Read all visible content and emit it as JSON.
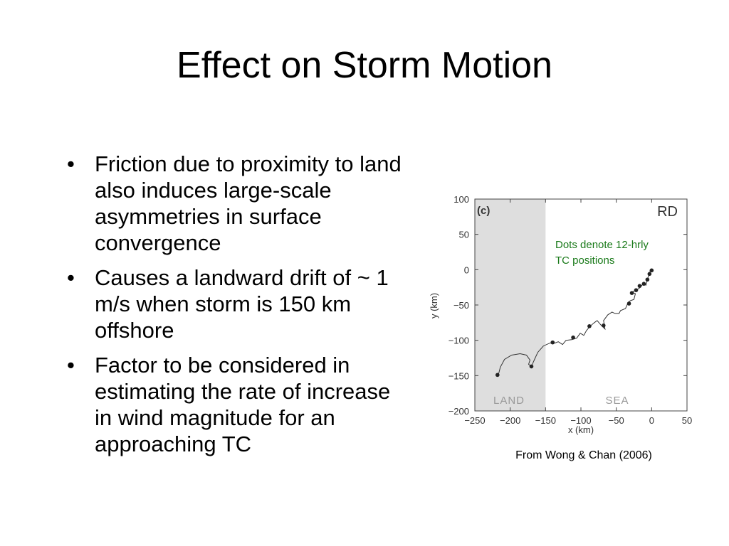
{
  "slide": {
    "title": "Effect on Storm Motion",
    "bullets": [
      "Friction due to proximity to land also induces large-scale asymmetries in surface convergence",
      "Causes a landward drift of ~ 1 m/s when storm is 150 km offshore",
      "Factor to be considered in estimating the rate of increase in wind magnitude for an approaching TC"
    ],
    "bullet_symbol": "•",
    "caption": "From Wong & Chan (2006)"
  },
  "figure": {
    "panel_label": "(c)",
    "run_label": "RD",
    "annotation_line1": "Dots denote 12-hrly",
    "annotation_line2": "TC positions",
    "annotation_color": "#1a7a1a",
    "land_label": "LAND",
    "sea_label": "SEA",
    "land_shade_color": "#dedede"
  },
  "chart_data": {
    "type": "line",
    "xlabel": "x (km)",
    "ylabel": "y (km)",
    "xlim": [
      -250,
      50
    ],
    "ylim": [
      -200,
      100
    ],
    "x_ticks": [
      -250,
      -200,
      -150,
      -100,
      -50,
      0,
      50
    ],
    "y_ticks": [
      100,
      50,
      0,
      -50,
      -100,
      -150,
      -200
    ],
    "land_region_x": [
      -250,
      -150
    ],
    "track": [
      [
        -217,
        -150
      ],
      [
        -214,
        -138
      ],
      [
        -208,
        -127
      ],
      [
        -198,
        -121
      ],
      [
        -186,
        -119
      ],
      [
        -177,
        -121
      ],
      [
        -172,
        -128
      ],
      [
        -174,
        -134
      ],
      [
        -170,
        -137
      ],
      [
        -166,
        -128
      ],
      [
        -161,
        -117
      ],
      [
        -153,
        -108
      ],
      [
        -144,
        -104
      ],
      [
        -137,
        -104
      ],
      [
        -132,
        -102
      ],
      [
        -126,
        -106
      ],
      [
        -121,
        -100
      ],
      [
        -113,
        -99
      ],
      [
        -106,
        -97
      ],
      [
        -101,
        -90
      ],
      [
        -96,
        -93
      ],
      [
        -92,
        -86
      ],
      [
        -87,
        -80
      ],
      [
        -81,
        -75
      ],
      [
        -77,
        -72
      ],
      [
        -72,
        -78
      ],
      [
        -66,
        -84
      ],
      [
        -68,
        -72
      ],
      [
        -62,
        -64
      ],
      [
        -56,
        -60
      ],
      [
        -52,
        -62
      ],
      [
        -46,
        -62
      ],
      [
        -44,
        -58
      ],
      [
        -37,
        -55
      ],
      [
        -33,
        -46
      ],
      [
        -30,
        -44
      ],
      [
        -25,
        -42
      ],
      [
        -23,
        -34
      ],
      [
        -28,
        -32
      ],
      [
        -20,
        -28
      ],
      [
        -16,
        -25
      ],
      [
        -12,
        -20
      ],
      [
        -8,
        -22
      ],
      [
        -6,
        -14
      ],
      [
        -4,
        -7
      ],
      [
        -1,
        0
      ]
    ],
    "positions_12h": [
      [
        -218,
        -149
      ],
      [
        -170,
        -137
      ],
      [
        -140,
        -103
      ],
      [
        -111,
        -96
      ],
      [
        -88,
        -80
      ],
      [
        -68,
        -79
      ],
      [
        -32,
        -48
      ],
      [
        -28,
        -33
      ],
      [
        -22,
        -29
      ],
      [
        -17,
        -23
      ],
      [
        -11,
        -20
      ],
      [
        -6,
        -14
      ],
      [
        -3,
        -6
      ],
      [
        0,
        -1
      ]
    ]
  }
}
